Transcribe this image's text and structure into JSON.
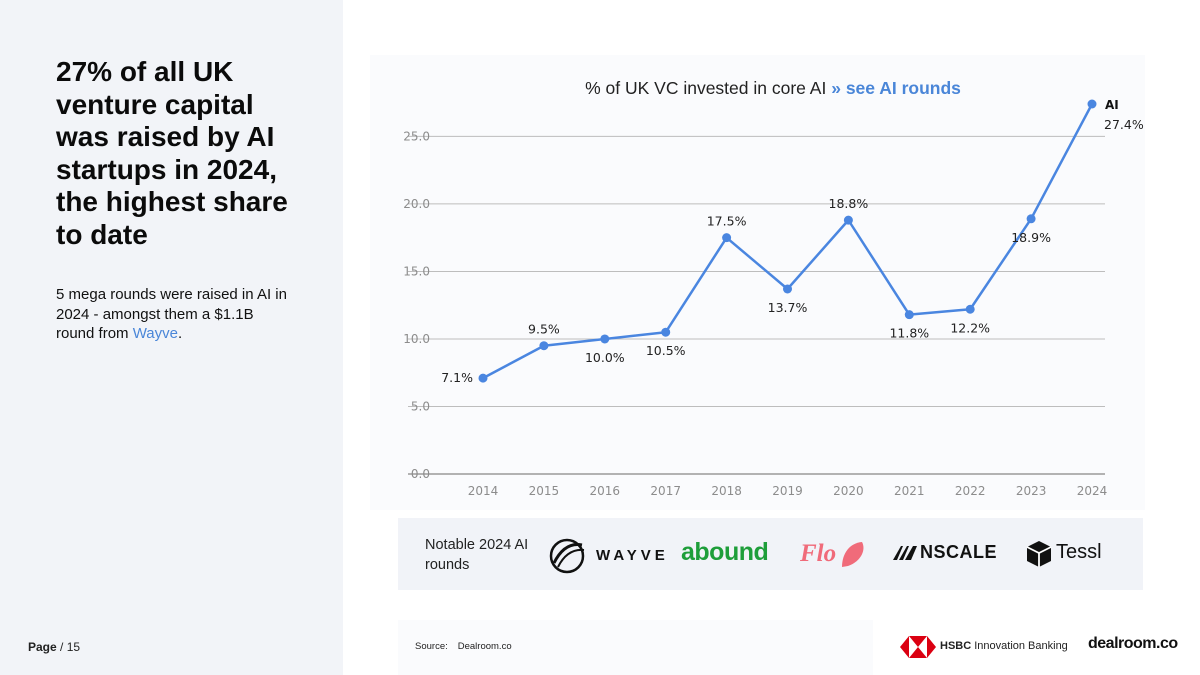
{
  "headline": "27% of all UK venture capital was raised by AI startups in 2024, the highest share to date",
  "subtext": {
    "before": "5 mega rounds were raised in AI in 2024 - amongst them a $1.1B round from ",
    "link": "Wayve",
    "after": "."
  },
  "page": {
    "label": "Page",
    "total": "/ 15"
  },
  "chart_data": {
    "type": "line",
    "title": "% of UK VC invested in core AI",
    "title_link": "» see AI rounds",
    "xlabel": "",
    "ylabel": "",
    "x": [
      "2014",
      "2015",
      "2016",
      "2017",
      "2018",
      "2019",
      "2020",
      "2021",
      "2022",
      "2023",
      "2024"
    ],
    "series": [
      {
        "name": "AI",
        "values": [
          7.1,
          9.5,
          10.0,
          10.5,
          17.5,
          13.7,
          18.8,
          11.8,
          12.2,
          18.9,
          27.4
        ],
        "labels": [
          "7.1%",
          "9.5%",
          "10.0%",
          "10.5%",
          "17.5%",
          "13.7%",
          "18.8%",
          "11.8%",
          "12.2%",
          "18.9%",
          "27.4%"
        ],
        "color": "#4a86e0"
      }
    ],
    "ylim": [
      0,
      27.4
    ],
    "yticks": [
      "0.0",
      "5.0",
      "10.0",
      "15.0",
      "20.0",
      "25.0"
    ],
    "ytick_values": [
      0,
      5,
      10,
      15,
      20,
      25
    ],
    "grid": true,
    "legend": "none"
  },
  "rounds": {
    "label": "Notable 2024 AI rounds",
    "logos": [
      "WAYVE",
      "abound",
      "Flo",
      "NSCALE",
      "Tessl"
    ]
  },
  "footer": {
    "source_label": "Source:",
    "source_value": "Dealroom.co",
    "hsbc_bold": "HSBC",
    "hsbc_rest": "Innovation Banking",
    "dealroom": "dealroom.co"
  },
  "colors": {
    "accent": "#4a86d8",
    "line": "#4a86e0",
    "hsbc_red": "#db0011",
    "abound_green": "#1e9e3a",
    "flo_pink": "#f06b7a"
  }
}
